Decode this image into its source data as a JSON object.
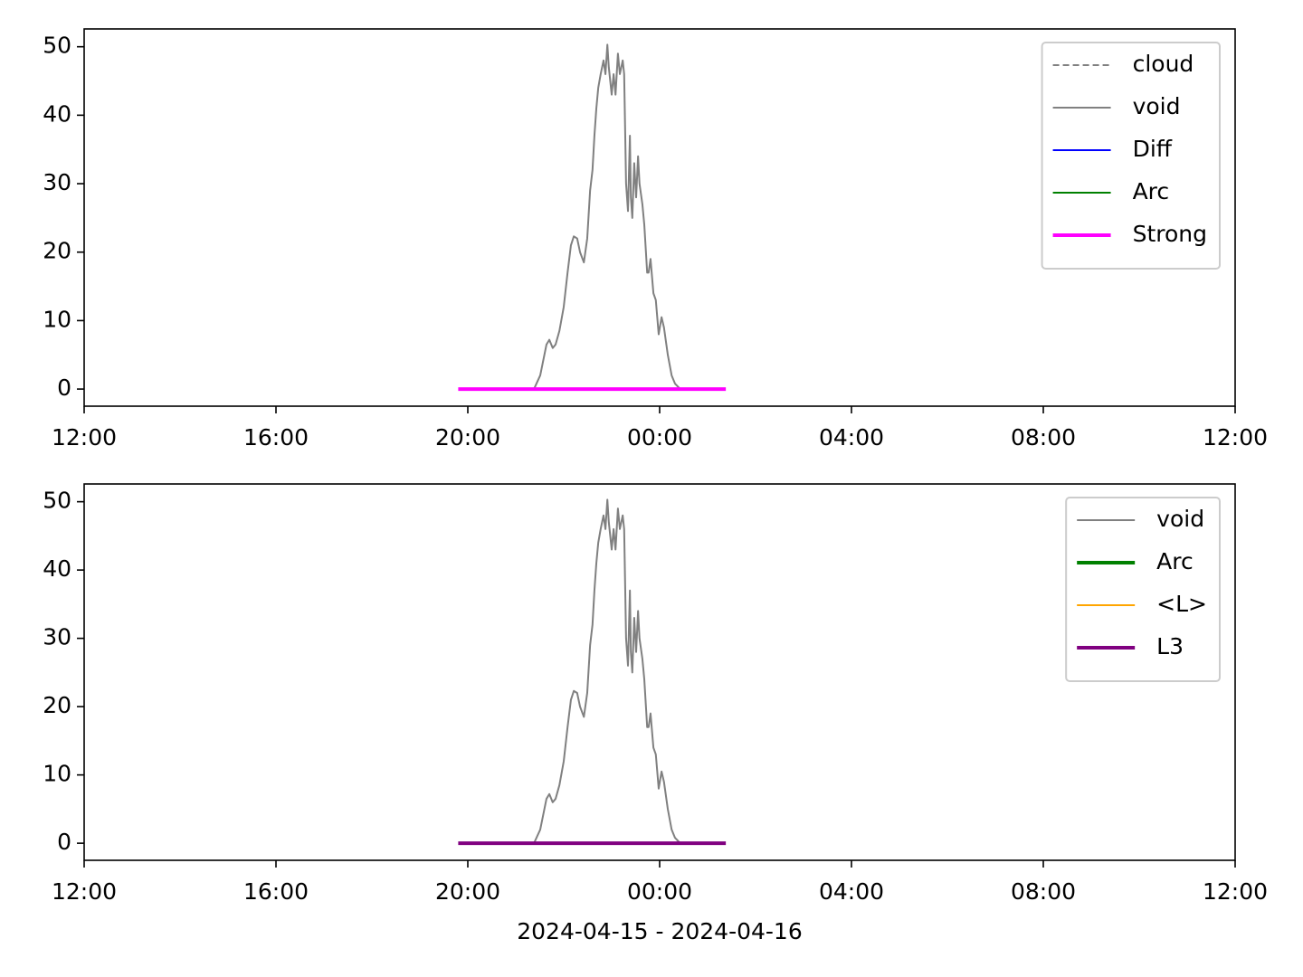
{
  "chart_data": [
    {
      "type": "line",
      "legend": "upper right",
      "xlim": [
        0,
        24
      ],
      "xticks": [
        {
          "value": 0,
          "label": "12:00"
        },
        {
          "value": 4,
          "label": "16:00"
        },
        {
          "value": 8,
          "label": "20:00"
        },
        {
          "value": 12,
          "label": "00:00"
        },
        {
          "value": 16,
          "label": "04:00"
        },
        {
          "value": 20,
          "label": "08:00"
        },
        {
          "value": 24,
          "label": "12:00"
        }
      ],
      "ylim": [
        -2.5,
        52.6
      ],
      "yticks": [
        0,
        10,
        20,
        30,
        40,
        50
      ],
      "series": [
        {
          "name": "cloud",
          "color": "#808080",
          "linestyle": "dashed",
          "linewidth": 2,
          "x": [],
          "values": []
        },
        {
          "name": "void",
          "color": "#808080",
          "linestyle": "solid",
          "linewidth": 2,
          "x": [
            9.38,
            9.51,
            9.64,
            9.7,
            9.77,
            9.83,
            9.91,
            10.0,
            10.08,
            10.15,
            10.21,
            10.28,
            10.34,
            10.42,
            10.49,
            10.55,
            10.6,
            10.64,
            10.68,
            10.72,
            10.77,
            10.83,
            10.87,
            10.91,
            10.94,
            11.0,
            11.04,
            11.08,
            11.13,
            11.17,
            11.23,
            11.26,
            11.3,
            11.34,
            11.38,
            11.4,
            11.43,
            11.47,
            11.51,
            11.55,
            11.58,
            11.64,
            11.68,
            11.74,
            11.77,
            11.81,
            11.87,
            11.92,
            11.98,
            12.04,
            12.09,
            12.17,
            12.25,
            12.32,
            12.43
          ],
          "values": [
            0,
            2,
            6.5,
            7.2,
            6,
            6.5,
            8.5,
            12,
            17,
            21,
            22.3,
            22,
            20,
            18.5,
            22,
            29,
            32,
            37,
            41,
            44,
            46,
            48,
            46,
            50.3,
            47,
            43,
            46,
            43,
            49,
            46,
            48,
            46,
            30,
            26,
            37,
            28,
            25,
            33,
            28,
            34,
            30,
            27,
            24,
            17,
            17,
            19,
            14,
            13,
            8,
            10.5,
            9,
            5,
            2,
            0.8,
            0
          ]
        },
        {
          "name": "Diff",
          "color": "#0000ff",
          "linestyle": "solid",
          "linewidth": 2,
          "x": [],
          "values": []
        },
        {
          "name": "Arc",
          "color": "#008000",
          "linestyle": "solid",
          "linewidth": 2,
          "x": [],
          "values": []
        },
        {
          "name": "Strong",
          "color": "#ff00ff",
          "linestyle": "solid",
          "linewidth": 4,
          "x": [
            7.8,
            13.38
          ],
          "values": [
            0,
            0
          ]
        }
      ]
    },
    {
      "type": "line",
      "legend": "upper right",
      "xlabel": "2024-04-15 - 2024-04-16",
      "xlim": [
        0,
        24
      ],
      "xticks": [
        {
          "value": 0,
          "label": "12:00"
        },
        {
          "value": 4,
          "label": "16:00"
        },
        {
          "value": 8,
          "label": "20:00"
        },
        {
          "value": 12,
          "label": "00:00"
        },
        {
          "value": 16,
          "label": "04:00"
        },
        {
          "value": 20,
          "label": "08:00"
        },
        {
          "value": 24,
          "label": "12:00"
        }
      ],
      "ylim": [
        -2.5,
        52.6
      ],
      "yticks": [
        0,
        10,
        20,
        30,
        40,
        50
      ],
      "series": [
        {
          "name": "void",
          "color": "#808080",
          "linestyle": "solid",
          "linewidth": 2,
          "x": [
            9.38,
            9.51,
            9.64,
            9.7,
            9.77,
            9.83,
            9.91,
            10.0,
            10.08,
            10.15,
            10.21,
            10.28,
            10.34,
            10.42,
            10.49,
            10.55,
            10.6,
            10.64,
            10.68,
            10.72,
            10.77,
            10.83,
            10.87,
            10.91,
            10.94,
            11.0,
            11.04,
            11.08,
            11.13,
            11.17,
            11.23,
            11.26,
            11.3,
            11.34,
            11.38,
            11.4,
            11.43,
            11.47,
            11.51,
            11.55,
            11.58,
            11.64,
            11.68,
            11.74,
            11.77,
            11.81,
            11.87,
            11.92,
            11.98,
            12.04,
            12.09,
            12.17,
            12.25,
            12.32,
            12.43
          ],
          "values": [
            0,
            2,
            6.5,
            7.2,
            6,
            6.5,
            8.5,
            12,
            17,
            21,
            22.3,
            22,
            20,
            18.5,
            22,
            29,
            32,
            37,
            41,
            44,
            46,
            48,
            46,
            50.3,
            47,
            43,
            46,
            43,
            49,
            46,
            48,
            46,
            30,
            26,
            37,
            28,
            25,
            33,
            28,
            34,
            30,
            27,
            24,
            17,
            17,
            19,
            14,
            13,
            8,
            10.5,
            9,
            5,
            2,
            0.8,
            0
          ]
        },
        {
          "name": "Arc",
          "color": "#008000",
          "linestyle": "solid",
          "linewidth": 4,
          "x": [],
          "values": []
        },
        {
          "name": "<L>",
          "color": "#ffa500",
          "linestyle": "solid",
          "linewidth": 2,
          "x": [],
          "values": []
        },
        {
          "name": "L3",
          "color": "#800080",
          "linestyle": "solid",
          "linewidth": 4,
          "x": [
            7.8,
            13.38
          ],
          "values": [
            0,
            0
          ]
        }
      ]
    }
  ]
}
